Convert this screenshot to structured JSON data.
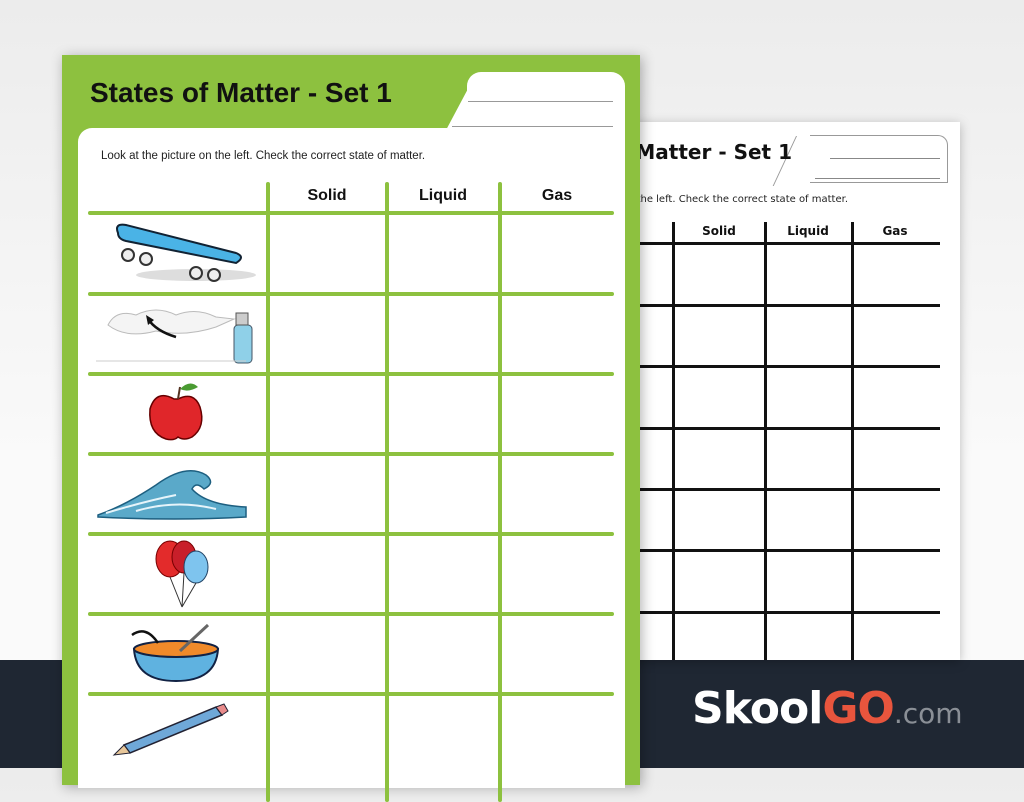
{
  "worksheet": {
    "title": "States of Matter - Set 1",
    "instructions": "Look at the picture on the left. Check the correct state of matter.",
    "columns": [
      "Solid",
      "Liquid",
      "Gas"
    ],
    "rows": [
      "skateboard",
      "spray-bottle",
      "apple",
      "wave",
      "balloons",
      "soup-bowl",
      "pencil"
    ]
  },
  "back_sheet": {
    "title": "Matter - Set 1",
    "instructions": "the left. Check the correct state of matter.",
    "columns": [
      "Solid",
      "Liquid",
      "Gas"
    ]
  },
  "logo": {
    "skool": "Skool",
    "go": "GO",
    "com": ".com"
  },
  "colors": {
    "accent": "#8dc13f",
    "band": "#1f2733",
    "logo_go": "#e8553d"
  }
}
